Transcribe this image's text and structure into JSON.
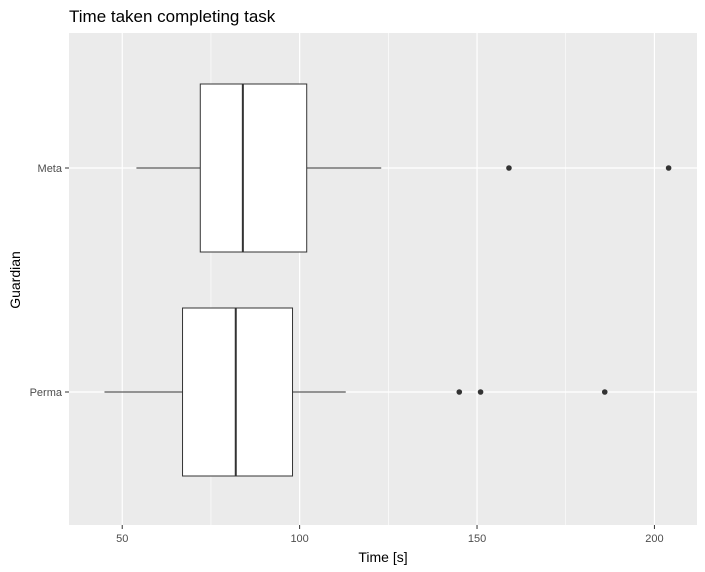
{
  "chart_data": {
    "type": "boxplot",
    "orientation": "horizontal",
    "title": "Time taken completing task",
    "xlabel": "Time [s]",
    "ylabel": "Guardian",
    "xlim": [
      35,
      212
    ],
    "x_ticks": [
      50,
      100,
      150,
      200
    ],
    "x_tick_labels": [
      "50",
      "100",
      "150",
      "200"
    ],
    "grid": true,
    "legend": "none",
    "categories": [
      "Meta",
      "Perma"
    ],
    "boxes": [
      {
        "category": "Meta",
        "whisker_low": 54,
        "q1": 72,
        "median": 84,
        "q3": 102,
        "whisker_high": 123,
        "outliers": [
          159,
          204
        ]
      },
      {
        "category": "Perma",
        "whisker_low": 45,
        "q1": 67,
        "median": 82,
        "q3": 98,
        "whisker_high": 113,
        "outliers": [
          145,
          151,
          186
        ]
      }
    ],
    "colors": {
      "panel": "#ebebeb",
      "grid": "#ffffff",
      "box_fill": "#ffffff",
      "box_stroke": "#333333",
      "outlier": "#333333"
    }
  }
}
